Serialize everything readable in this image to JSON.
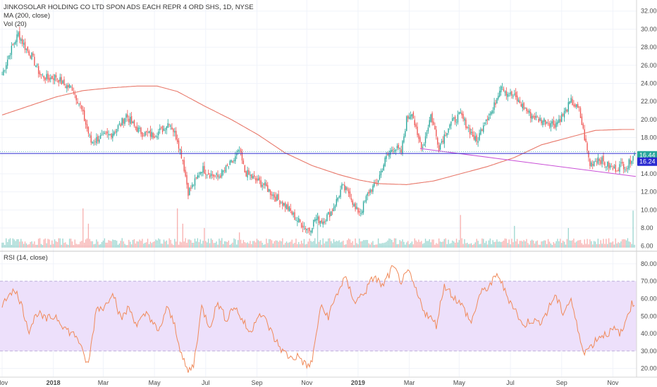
{
  "header": {
    "title": "JINKOSOLAR HOLDING CO LTD SPON ADS EACH REPR 4 ORD SHS, 1D, NYSE",
    "ma_label": "MA (200, close)",
    "vol_label": "Vol (20)",
    "rsi_label": "RSI (14, close)"
  },
  "price_tags": {
    "last": "16.44",
    "level": "16.24"
  },
  "colors": {
    "up": "#26a69a",
    "down": "#ef5350",
    "ma": "#e8786a",
    "hline": "#2a2ad0",
    "trend": "#c94fd6",
    "rsi": "#f08a5a",
    "rsi_band": "#ede0fb",
    "last_tag": "#26a69a",
    "level_tag": "#2a2ad0"
  },
  "chart_data": [
    {
      "type": "candlestick",
      "title": "JINKOSOLAR HOLDING CO LTD SPON ADS EACH REPR 4 ORD SHS, 1D, NYSE",
      "y_ticks": [
        "32.00",
        "30.00",
        "28.00",
        "26.00",
        "24.00",
        "22.00",
        "20.00",
        "18.00",
        "16.00",
        "14.00",
        "12.00",
        "10.00",
        "8.00",
        "6.00"
      ],
      "ylim": [
        5.2,
        32.6
      ],
      "x_ticks": [
        "Nov",
        "2018",
        "Mar",
        "May",
        "Jul",
        "Sep",
        "Nov",
        "2019",
        "Mar",
        "May",
        "Jul",
        "Sep",
        "Nov"
      ],
      "horizontal_line": 16.24,
      "last_price": 16.44,
      "close_keyframes": [
        [
          0,
          25.0
        ],
        [
          6,
          27.5
        ],
        [
          12,
          29.5
        ],
        [
          17,
          28.0
        ],
        [
          22,
          27.0
        ],
        [
          28,
          25.0
        ],
        [
          34,
          24.5
        ],
        [
          40,
          24.8
        ],
        [
          46,
          23.8
        ],
        [
          52,
          23.5
        ],
        [
          58,
          21.5
        ],
        [
          62,
          19.5
        ],
        [
          66,
          17.5
        ],
        [
          72,
          18.0
        ],
        [
          80,
          18.3
        ],
        [
          88,
          19.5
        ],
        [
          92,
          20.5
        ],
        [
          98,
          19.2
        ],
        [
          104,
          18.5
        ],
        [
          112,
          18.3
        ],
        [
          120,
          19.0
        ],
        [
          124,
          19.8
        ],
        [
          130,
          17.8
        ],
        [
          134,
          15.5
        ],
        [
          138,
          12.0
        ],
        [
          142,
          12.8
        ],
        [
          148,
          14.6
        ],
        [
          154,
          14.0
        ],
        [
          160,
          13.6
        ],
        [
          166,
          14.5
        ],
        [
          172,
          15.5
        ],
        [
          176,
          16.5
        ],
        [
          180,
          14.2
        ],
        [
          188,
          13.3
        ],
        [
          194,
          12.8
        ],
        [
          200,
          11.8
        ],
        [
          206,
          11.0
        ],
        [
          212,
          10.2
        ],
        [
          218,
          9.0
        ],
        [
          224,
          8.2
        ],
        [
          228,
          7.8
        ],
        [
          232,
          9.0
        ],
        [
          238,
          8.8
        ],
        [
          244,
          9.8
        ],
        [
          248,
          11.0
        ],
        [
          252,
          12.5
        ],
        [
          258,
          11.8
        ],
        [
          262,
          10.0
        ],
        [
          266,
          9.8
        ],
        [
          272,
          12.0
        ],
        [
          278,
          13.0
        ],
        [
          284,
          15.5
        ],
        [
          290,
          17.0
        ],
        [
          296,
          16.4
        ],
        [
          300,
          20.0
        ],
        [
          304,
          21.0
        ],
        [
          308,
          18.0
        ],
        [
          312,
          17.0
        ],
        [
          318,
          20.5
        ],
        [
          324,
          17.0
        ],
        [
          332,
          19.5
        ],
        [
          340,
          20.5
        ],
        [
          346,
          19.0
        ],
        [
          352,
          17.5
        ],
        [
          358,
          20.0
        ],
        [
          364,
          21.0
        ],
        [
          370,
          24.0
        ],
        [
          374,
          23.0
        ],
        [
          380,
          22.5
        ],
        [
          386,
          21.5
        ],
        [
          392,
          20.5
        ],
        [
          398,
          20.0
        ],
        [
          404,
          19.8
        ],
        [
          410,
          19.5
        ],
        [
          416,
          20.5
        ],
        [
          422,
          22.0
        ],
        [
          428,
          21.0
        ],
        [
          432,
          18.0
        ],
        [
          436,
          15.0
        ],
        [
          442,
          15.8
        ],
        [
          448,
          15.0
        ],
        [
          454,
          14.5
        ],
        [
          460,
          15.0
        ],
        [
          464,
          14.8
        ],
        [
          468,
          16.2
        ]
      ]
    },
    {
      "type": "line",
      "name": "MA (200, close)",
      "keyframes": [
        [
          0,
          20.5
        ],
        [
          20,
          21.5
        ],
        [
          40,
          22.5
        ],
        [
          60,
          23.2
        ],
        [
          80,
          23.5
        ],
        [
          100,
          23.7
        ],
        [
          115,
          23.7
        ],
        [
          130,
          23.1
        ],
        [
          150,
          21.5
        ],
        [
          170,
          20.0
        ],
        [
          190,
          18.3
        ],
        [
          210,
          16.3
        ],
        [
          230,
          14.9
        ],
        [
          250,
          13.9
        ],
        [
          265,
          13.3
        ],
        [
          280,
          12.9
        ],
        [
          300,
          12.8
        ],
        [
          320,
          13.2
        ],
        [
          340,
          14.0
        ],
        [
          360,
          14.8
        ],
        [
          380,
          15.8
        ],
        [
          400,
          17.2
        ],
        [
          420,
          18.0
        ],
        [
          440,
          18.8
        ],
        [
          460,
          18.9
        ]
      ]
    },
    {
      "type": "line",
      "name": "trend",
      "points": [
        [
          310,
          16.8
        ],
        [
          470,
          13.7
        ]
      ]
    },
    {
      "type": "bar",
      "name": "Vol (20)",
      "spikes": [
        [
          60,
          0.9
        ],
        [
          64,
          0.55
        ],
        [
          130,
          0.9
        ],
        [
          134,
          0.55
        ],
        [
          150,
          0.45
        ],
        [
          176,
          0.35
        ],
        [
          234,
          0.8
        ],
        [
          340,
          0.75
        ],
        [
          380,
          0.5
        ],
        [
          420,
          0.45
        ],
        [
          468,
          0.85
        ]
      ]
    },
    {
      "type": "line",
      "name": "RSI (14, close)",
      "y_ticks": [
        "80.00",
        "70.00",
        "60.00",
        "50.00",
        "40.00",
        "30.00",
        "20.00"
      ],
      "ylim": [
        15,
        84
      ],
      "band": [
        30,
        70
      ],
      "keyframes": [
        [
          0,
          55
        ],
        [
          6,
          65
        ],
        [
          12,
          62
        ],
        [
          20,
          42
        ],
        [
          26,
          52
        ],
        [
          32,
          48
        ],
        [
          40,
          50
        ],
        [
          48,
          42
        ],
        [
          56,
          38
        ],
        [
          60,
          28
        ],
        [
          64,
          22
        ],
        [
          70,
          55
        ],
        [
          76,
          55
        ],
        [
          82,
          65
        ],
        [
          88,
          48
        ],
        [
          94,
          55
        ],
        [
          100,
          45
        ],
        [
          108,
          52
        ],
        [
          116,
          40
        ],
        [
          122,
          55
        ],
        [
          128,
          45
        ],
        [
          134,
          25
        ],
        [
          138,
          18
        ],
        [
          142,
          22
        ],
        [
          148,
          55
        ],
        [
          154,
          44
        ],
        [
          160,
          58
        ],
        [
          166,
          48
        ],
        [
          172,
          56
        ],
        [
          178,
          48
        ],
        [
          184,
          40
        ],
        [
          190,
          52
        ],
        [
          196,
          47
        ],
        [
          202,
          37
        ],
        [
          208,
          30
        ],
        [
          214,
          26
        ],
        [
          220,
          27
        ],
        [
          226,
          21
        ],
        [
          230,
          24
        ],
        [
          236,
          55
        ],
        [
          242,
          50
        ],
        [
          248,
          62
        ],
        [
          254,
          72
        ],
        [
          262,
          58
        ],
        [
          270,
          65
        ],
        [
          276,
          73
        ],
        [
          282,
          67
        ],
        [
          290,
          78
        ],
        [
          296,
          70
        ],
        [
          302,
          75
        ],
        [
          308,
          62
        ],
        [
          314,
          52
        ],
        [
          322,
          45
        ],
        [
          328,
          68
        ],
        [
          334,
          62
        ],
        [
          342,
          55
        ],
        [
          348,
          46
        ],
        [
          354,
          62
        ],
        [
          362,
          68
        ],
        [
          368,
          74
        ],
        [
          374,
          62
        ],
        [
          380,
          55
        ],
        [
          386,
          44
        ],
        [
          392,
          48
        ],
        [
          398,
          46
        ],
        [
          404,
          52
        ],
        [
          410,
          62
        ],
        [
          416,
          52
        ],
        [
          422,
          60
        ],
        [
          428,
          38
        ],
        [
          432,
          30
        ],
        [
          436,
          32
        ],
        [
          442,
          38
        ],
        [
          448,
          40
        ],
        [
          454,
          42
        ],
        [
          460,
          40
        ],
        [
          464,
          52
        ],
        [
          468,
          58
        ]
      ]
    }
  ]
}
